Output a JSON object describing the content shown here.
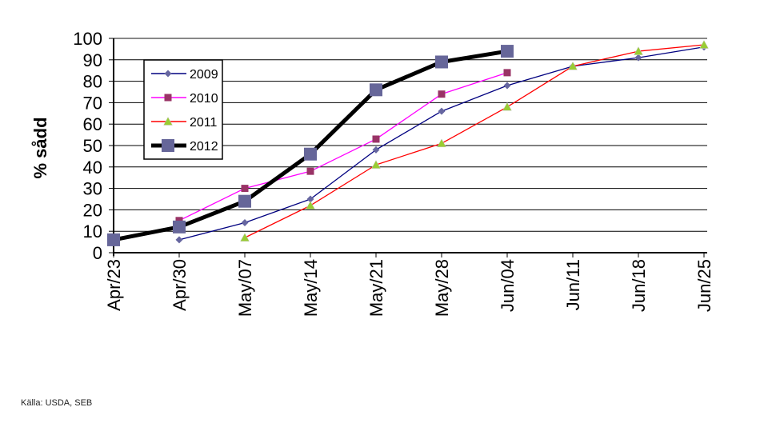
{
  "chart_data": {
    "type": "line",
    "title": "",
    "xlabel": "",
    "ylabel": "% sådd",
    "ylim": [
      0,
      100
    ],
    "yticks": [
      0,
      10,
      20,
      30,
      40,
      50,
      60,
      70,
      80,
      90,
      100
    ],
    "grid": true,
    "legend_position": "top-left",
    "categories": [
      "Apr/23",
      "Apr/30",
      "May/07",
      "May/14",
      "May/21",
      "May/28",
      "Jun/04",
      "Jun/11",
      "Jun/18",
      "Jun/25"
    ],
    "series": [
      {
        "name": "2009",
        "color": "#000080",
        "marker": "diamond",
        "marker_color": "#6666a0",
        "values": [
          null,
          6,
          14,
          25,
          48,
          66,
          78,
          87,
          91,
          96
        ]
      },
      {
        "name": "2010",
        "color": "#ff00ff",
        "marker": "square",
        "marker_color": "#993366",
        "values": [
          null,
          15,
          30,
          38,
          53,
          74,
          84,
          null,
          null,
          null
        ]
      },
      {
        "name": "2011",
        "color": "#ff0000",
        "marker": "triangle",
        "marker_color": "#99cc33",
        "values": [
          null,
          null,
          7,
          22,
          41,
          51,
          68,
          87,
          94,
          97
        ]
      },
      {
        "name": "2012",
        "color": "#000000",
        "marker": "square",
        "marker_color": "#666699",
        "values": [
          6,
          12,
          24,
          46,
          76,
          89,
          94,
          null,
          null,
          null
        ]
      }
    ]
  },
  "source": "Källa: USDA, SEB"
}
